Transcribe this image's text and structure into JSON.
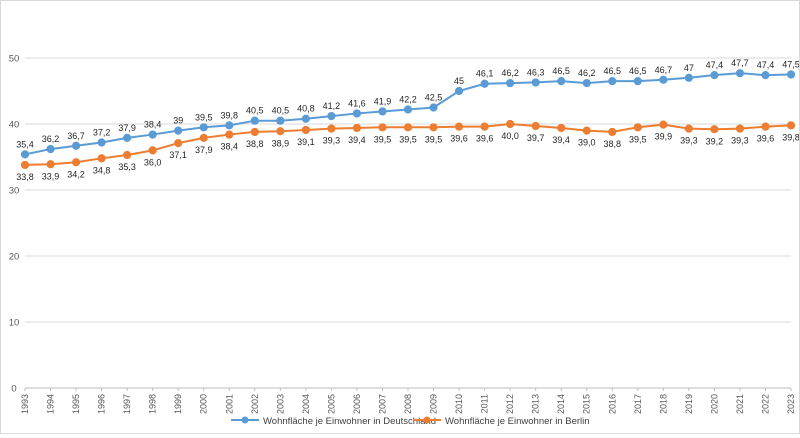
{
  "chart_data": {
    "type": "line",
    "title": "",
    "xlabel": "",
    "ylabel": "",
    "ylim": [
      0,
      55
    ],
    "yticks": [
      0,
      10,
      20,
      30,
      40,
      50
    ],
    "grid": true,
    "legend_position": "bottom",
    "categories": [
      "1993",
      "1994",
      "1995",
      "1996",
      "1997",
      "1998",
      "1999",
      "2000",
      "2001",
      "2002",
      "2003",
      "2004",
      "2005",
      "2006",
      "2007",
      "2008",
      "2009",
      "2010",
      "2011",
      "2012",
      "2013",
      "2014",
      "2015",
      "2016",
      "2017",
      "2018",
      "2019",
      "2020",
      "2021",
      "2022",
      "2023"
    ],
    "series": [
      {
        "name": "Wohnfläche je Einwohner  in Deutschland",
        "color": "#5b9bd5",
        "values": [
          35.4,
          36.2,
          36.7,
          37.2,
          37.9,
          38.4,
          39,
          39.5,
          39.8,
          40.5,
          40.5,
          40.8,
          41.2,
          41.6,
          41.9,
          42.2,
          42.5,
          45,
          46.1,
          46.2,
          46.3,
          46.5,
          46.2,
          46.5,
          46.5,
          46.7,
          47,
          47.4,
          47.7,
          47.4,
          47.5
        ],
        "labels": [
          "35,4",
          "36,2",
          "36,7",
          "37,2",
          "37,9",
          "38,4",
          "39",
          "39,5",
          "39,8",
          "40,5",
          "40,5",
          "40,8",
          "41,2",
          "41,6",
          "41,9",
          "42,2",
          "42,5",
          "45",
          "46,1",
          "46,2",
          "46,3",
          "46,5",
          "46,2",
          "46,5",
          "46,5",
          "46,7",
          "47",
          "47,4",
          "47,7",
          "47,4",
          "47,5"
        ]
      },
      {
        "name": "Wohnfläche je Einwohner  in Berlin",
        "color": "#ed7d31",
        "values": [
          33.8,
          33.9,
          34.2,
          34.8,
          35.3,
          36.0,
          37.1,
          37.9,
          38.4,
          38.8,
          38.9,
          39.1,
          39.3,
          39.4,
          39.5,
          39.5,
          39.5,
          39.6,
          39.6,
          40.0,
          39.7,
          39.4,
          39.0,
          38.8,
          39.5,
          39.9,
          39.3,
          39.2,
          39.3,
          39.6,
          39.8
        ],
        "labels": [
          "33,8",
          "33,9",
          "34,2",
          "34,8",
          "35,3",
          "36,0",
          "37,1",
          "37,9",
          "38,4",
          "38,8",
          "38,9",
          "39,1",
          "39,3",
          "39,4",
          "39,5",
          "39,5",
          "39,5",
          "39,6",
          "39,6",
          "40,0",
          "39,7",
          "39,4",
          "39,0",
          "38,8",
          "39,5",
          "39,9",
          "39,3",
          "39,2",
          "39,3",
          "39,6",
          "39,8"
        ]
      }
    ]
  }
}
